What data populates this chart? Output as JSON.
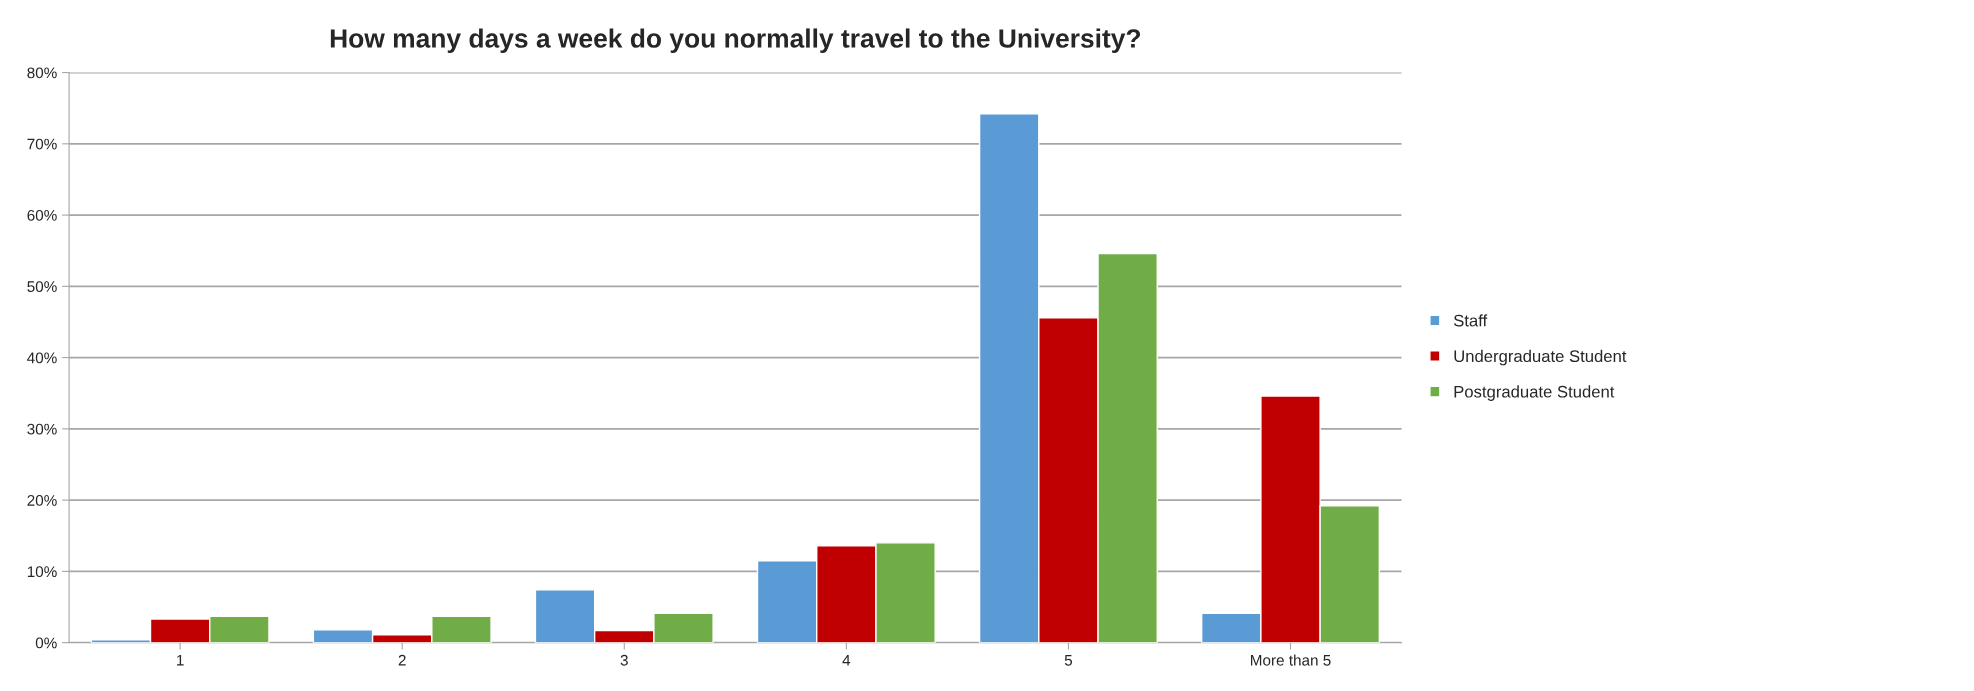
{
  "chart_data": {
    "type": "bar",
    "title": "How many days a week do you normally travel to the University?",
    "categories": [
      "1",
      "2",
      "3",
      "4",
      "5",
      "More than 5"
    ],
    "series": [
      {
        "name": "Staff",
        "color": "#5b9bd5",
        "values": [
          0.4,
          1.8,
          7.4,
          11.5,
          74.2,
          4.1
        ]
      },
      {
        "name": "Undergraduate Student",
        "color": "#c00000",
        "values": [
          3.3,
          1.1,
          1.7,
          13.6,
          45.6,
          34.6
        ]
      },
      {
        "name": "Postgraduate Student",
        "color": "#70ad47",
        "values": [
          3.7,
          3.7,
          4.1,
          14.0,
          54.6,
          19.2
        ]
      }
    ],
    "ylim": [
      0,
      80
    ],
    "yticks": [
      {
        "value": 0,
        "label": "0%"
      },
      {
        "value": 10,
        "label": "10%"
      },
      {
        "value": 20,
        "label": "20%"
      },
      {
        "value": 30,
        "label": "30%"
      },
      {
        "value": 40,
        "label": "40%"
      },
      {
        "value": 50,
        "label": "50%"
      },
      {
        "value": 60,
        "label": "60%"
      },
      {
        "value": 70,
        "label": "70%"
      },
      {
        "value": 80,
        "label": "80%"
      }
    ],
    "grid": "y",
    "legend": "right"
  }
}
